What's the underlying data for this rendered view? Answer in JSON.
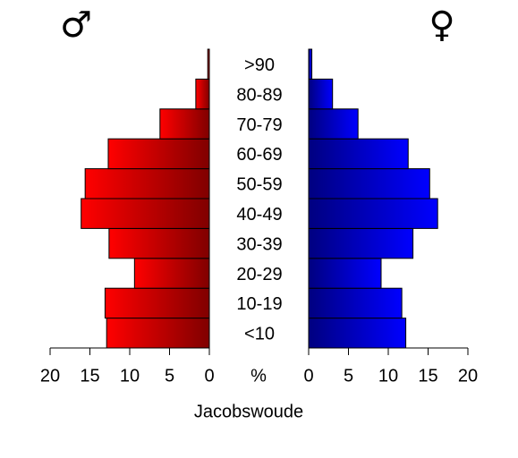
{
  "chart_data": {
    "type": "population_pyramid",
    "title": "Jacobswoude",
    "x_label": "%",
    "categories": [
      "<10",
      "10-19",
      "20-29",
      "30-39",
      "40-49",
      "50-59",
      "60-69",
      "70-79",
      "80-89",
      ">90"
    ],
    "series": [
      {
        "name": "♂",
        "color": "#ff0000",
        "values": [
          12.9,
          13.1,
          9.4,
          12.6,
          16.1,
          15.6,
          12.7,
          6.2,
          1.7,
          0.2
        ]
      },
      {
        "name": "♀",
        "color": "#0000ff",
        "values": [
          12.2,
          11.7,
          9.1,
          13.1,
          16.2,
          15.2,
          12.5,
          6.2,
          3.0,
          0.4
        ]
      }
    ],
    "xlim": [
      0,
      20
    ],
    "xticks": [
      0,
      5,
      10,
      15,
      20
    ]
  }
}
